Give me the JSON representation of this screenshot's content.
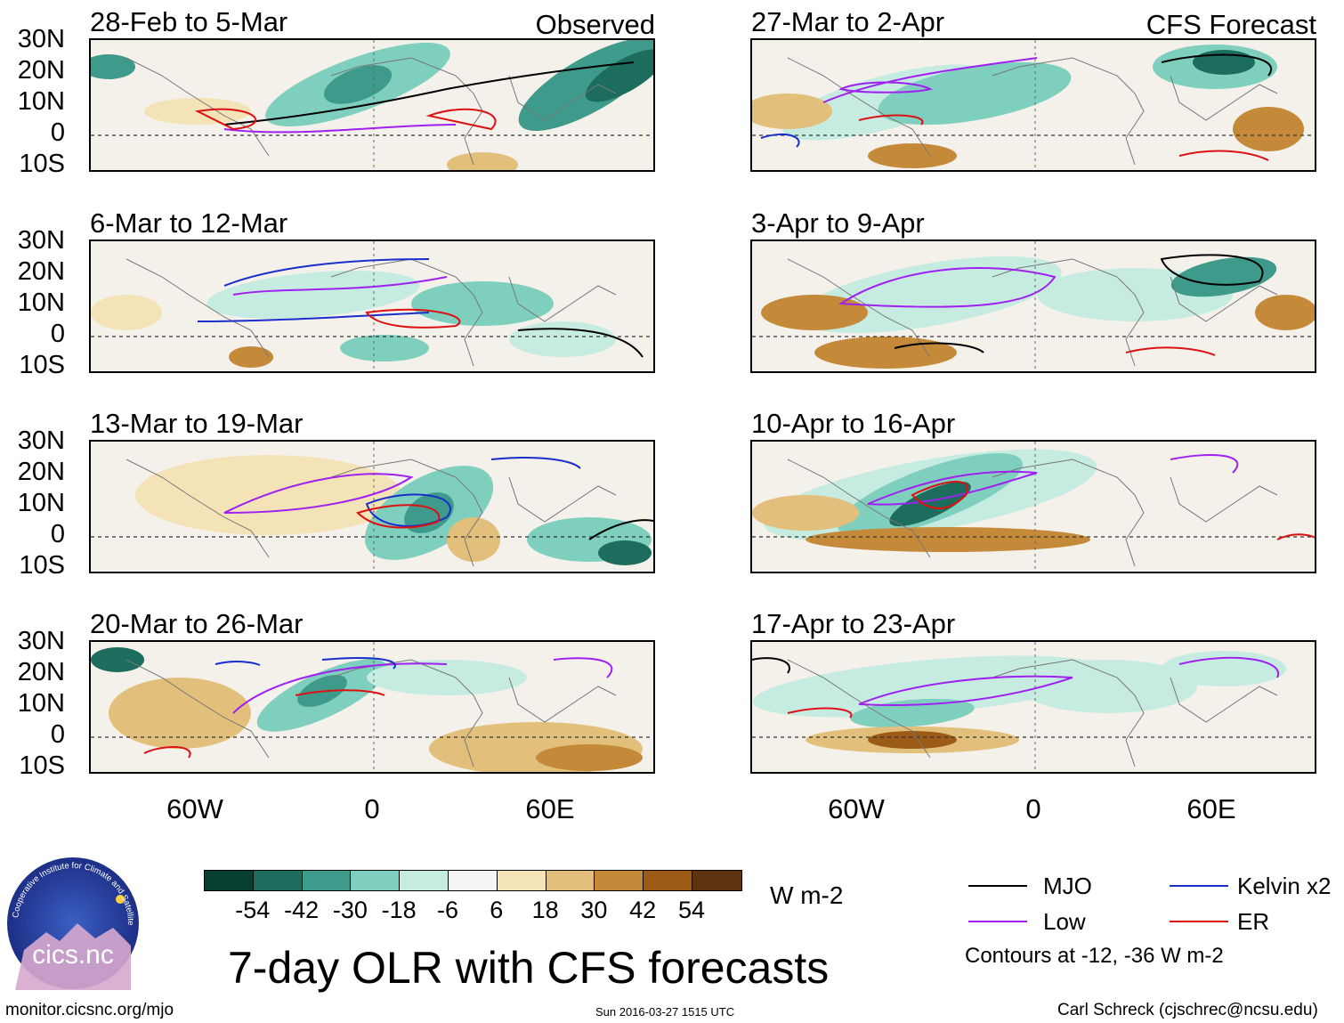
{
  "panels_left": [
    {
      "period": "28-Feb to 5-Mar",
      "label": "Observed"
    },
    {
      "period": "6-Mar to 12-Mar",
      "label": ""
    },
    {
      "period": "13-Mar to 19-Mar",
      "label": ""
    },
    {
      "period": "20-Mar to 26-Mar",
      "label": ""
    }
  ],
  "panels_right": [
    {
      "period": "27-Mar to 2-Apr",
      "label": "CFS Forecast"
    },
    {
      "period": "3-Apr to 9-Apr",
      "label": ""
    },
    {
      "period": "10-Apr to 16-Apr",
      "label": ""
    },
    {
      "period": "17-Apr to 23-Apr",
      "label": ""
    }
  ],
  "lat_ticks": [
    "30N",
    "20N",
    "10N",
    "0",
    "10S"
  ],
  "lon_ticks": [
    "60W",
    "0",
    "60E"
  ],
  "colorbar": {
    "labels": [
      "-54",
      "-42",
      "-30",
      "-18",
      "-6",
      "6",
      "18",
      "30",
      "42",
      "54"
    ],
    "colors": [
      "#073f33",
      "#1c6d5e",
      "#3e9a8a",
      "#7fcfbf",
      "#c6ece2",
      "#f5f5f5",
      "#f5e3b8",
      "#e2bf7a",
      "#c48a3a",
      "#9c5a17",
      "#5e3410"
    ],
    "units": "W m-2"
  },
  "title": "7-day OLR with CFS forecasts",
  "legend": {
    "items": [
      {
        "label": "MJO",
        "color": "#000000"
      },
      {
        "label": "Kelvin x2",
        "color": "#1a2ecc"
      },
      {
        "label": "Low",
        "color": "#a020f0"
      },
      {
        "label": "ER",
        "color": "#dd1111"
      }
    ],
    "note": "Contours at -12, -36 W m-2"
  },
  "logo": {
    "text": "cics.nc",
    "ring_text": "Cooperative Institute for Climate and Satellites"
  },
  "footer": {
    "url": "monitor.cicsnc.org/mjo",
    "timestamp": "Sun 2016-03-27 1515 UTC",
    "author": "Carl Schreck (cjschrec@ncsu.edu)"
  }
}
